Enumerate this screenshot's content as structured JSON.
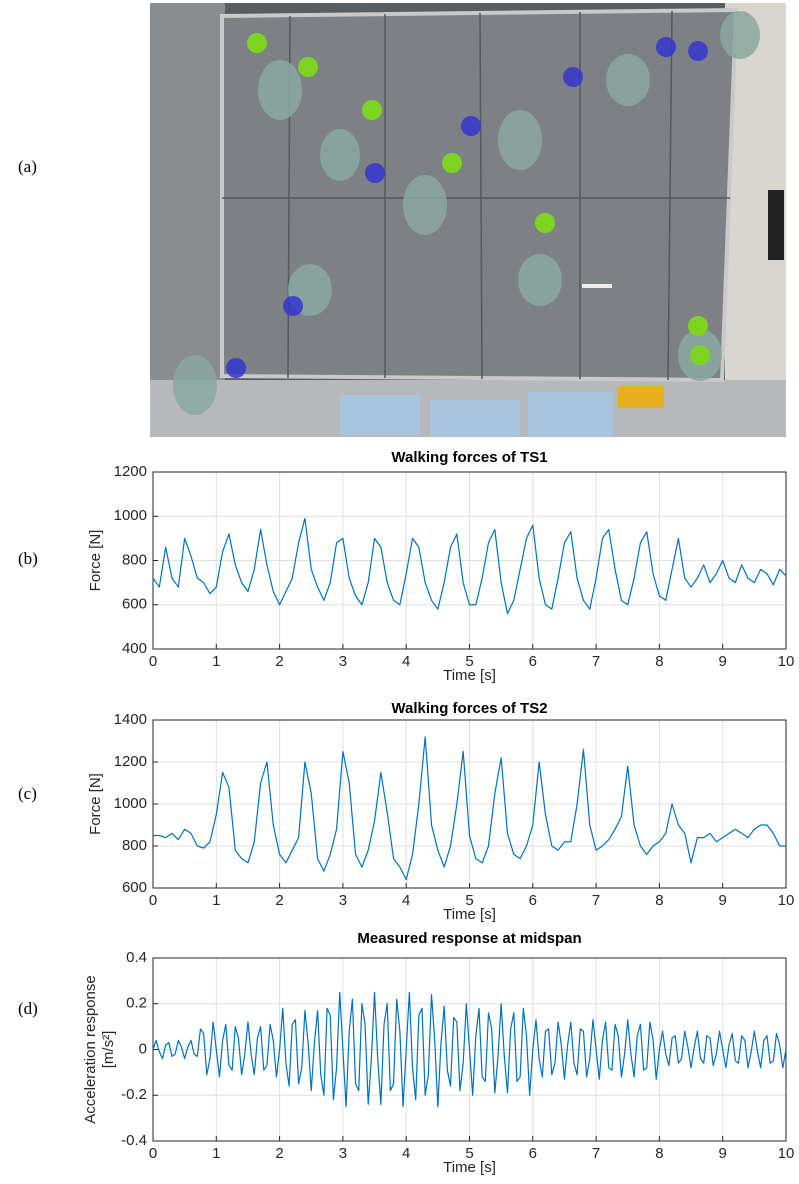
{
  "panel_labels": [
    "(a)",
    "(b)",
    "(c)",
    "(d)"
  ],
  "chart_data": [
    {
      "type": "line",
      "title": "Walking forces of TS1",
      "xlabel": "Time [s]",
      "ylabel": "Force [N]",
      "color": "#0072bd",
      "grid": true,
      "xlim": [
        0,
        10
      ],
      "xticks": [
        0,
        1,
        2,
        3,
        4,
        5,
        6,
        7,
        8,
        9,
        10
      ],
      "ylim": [
        400,
        1200
      ],
      "yticks": [
        400,
        600,
        800,
        1000,
        1200
      ],
      "x": [
        0,
        0.1,
        0.2,
        0.3,
        0.4,
        0.5,
        0.6,
        0.7,
        0.8,
        0.9,
        1,
        1.1,
        1.2,
        1.3,
        1.4,
        1.5,
        1.6,
        1.7,
        1.8,
        1.9,
        2,
        2.1,
        2.2,
        2.3,
        2.4,
        2.5,
        2.6,
        2.7,
        2.8,
        2.9,
        3,
        3.1,
        3.2,
        3.3,
        3.4,
        3.5,
        3.6,
        3.7,
        3.8,
        3.9,
        4,
        4.1,
        4.2,
        4.3,
        4.4,
        4.5,
        4.6,
        4.7,
        4.8,
        4.9,
        5,
        5.1,
        5.2,
        5.3,
        5.4,
        5.5,
        5.6,
        5.7,
        5.8,
        5.9,
        6,
        6.1,
        6.2,
        6.3,
        6.4,
        6.5,
        6.6,
        6.7,
        6.8,
        6.9,
        7,
        7.1,
        7.2,
        7.3,
        7.4,
        7.5,
        7.6,
        7.7,
        7.8,
        7.9,
        8,
        8.1,
        8.2,
        8.3,
        8.4,
        8.5,
        8.6,
        8.7,
        8.8,
        8.9,
        9,
        9.1,
        9.2,
        9.3,
        9.4,
        9.5,
        9.6,
        9.7,
        9.8,
        9.9,
        10
      ],
      "values": [
        720,
        680,
        860,
        720,
        680,
        900,
        820,
        720,
        700,
        650,
        680,
        840,
        920,
        780,
        700,
        660,
        760,
        940,
        780,
        660,
        600,
        660,
        720,
        880,
        990,
        760,
        680,
        620,
        700,
        880,
        900,
        720,
        640,
        600,
        700,
        900,
        860,
        700,
        620,
        600,
        740,
        900,
        860,
        700,
        620,
        580,
        700,
        860,
        920,
        700,
        600,
        600,
        720,
        880,
        940,
        700,
        560,
        620,
        760,
        900,
        960,
        720,
        600,
        580,
        720,
        880,
        930,
        720,
        620,
        580,
        720,
        900,
        940,
        760,
        620,
        600,
        720,
        880,
        930,
        740,
        640,
        620,
        760,
        900,
        720,
        680,
        720,
        780,
        700,
        740,
        800,
        720,
        700,
        780,
        720,
        700,
        760,
        740,
        690,
        760,
        730
      ]
    },
    {
      "type": "line",
      "title": "Walking forces of TS2",
      "xlabel": "Time [s]",
      "ylabel": "Force [N]",
      "color": "#0072bd",
      "grid": true,
      "xlim": [
        0,
        10
      ],
      "xticks": [
        0,
        1,
        2,
        3,
        4,
        5,
        6,
        7,
        8,
        9,
        10
      ],
      "ylim": [
        600,
        1400
      ],
      "yticks": [
        600,
        800,
        1000,
        1200,
        1400
      ],
      "x": [
        0,
        0.1,
        0.2,
        0.3,
        0.4,
        0.5,
        0.6,
        0.7,
        0.8,
        0.9,
        1,
        1.1,
        1.2,
        1.3,
        1.4,
        1.5,
        1.6,
        1.7,
        1.8,
        1.9,
        2,
        2.1,
        2.2,
        2.3,
        2.4,
        2.5,
        2.6,
        2.7,
        2.8,
        2.9,
        3,
        3.1,
        3.2,
        3.3,
        3.4,
        3.5,
        3.6,
        3.7,
        3.8,
        3.9,
        4,
        4.1,
        4.2,
        4.3,
        4.4,
        4.5,
        4.6,
        4.7,
        4.8,
        4.9,
        5,
        5.1,
        5.2,
        5.3,
        5.4,
        5.5,
        5.6,
        5.7,
        5.8,
        5.9,
        6,
        6.1,
        6.2,
        6.3,
        6.4,
        6.5,
        6.6,
        6.7,
        6.8,
        6.9,
        7,
        7.1,
        7.2,
        7.3,
        7.4,
        7.5,
        7.6,
        7.7,
        7.8,
        7.9,
        8,
        8.1,
        8.2,
        8.3,
        8.4,
        8.5,
        8.6,
        8.7,
        8.8,
        8.9,
        9,
        9.1,
        9.2,
        9.3,
        9.4,
        9.5,
        9.6,
        9.7,
        9.8,
        9.9,
        10
      ],
      "values": [
        850,
        850,
        840,
        860,
        830,
        880,
        860,
        800,
        790,
        820,
        950,
        1150,
        1080,
        780,
        740,
        720,
        820,
        1100,
        1200,
        900,
        760,
        720,
        780,
        840,
        1200,
        1050,
        740,
        680,
        760,
        880,
        1250,
        1100,
        760,
        700,
        780,
        920,
        1150,
        960,
        740,
        700,
        640,
        760,
        1000,
        1320,
        900,
        780,
        700,
        800,
        1000,
        1250,
        850,
        740,
        720,
        800,
        1050,
        1220,
        860,
        760,
        740,
        800,
        900,
        1200,
        950,
        800,
        780,
        820,
        820,
        1000,
        1260,
        900,
        780,
        800,
        830,
        880,
        940,
        1180,
        900,
        800,
        760,
        800,
        820,
        860,
        1000,
        900,
        860,
        720,
        840,
        840,
        860,
        820,
        840,
        860,
        880,
        860,
        840,
        880,
        900,
        900,
        860,
        800,
        800
      ]
    },
    {
      "type": "line",
      "title": "Measured response at midspan",
      "xlabel": "Time [s]",
      "ylabel": [
        "Acceleration response",
        "[m/s²]"
      ],
      "color": "#0072bd",
      "grid": true,
      "xlim": [
        0,
        10
      ],
      "xticks": [
        0,
        1,
        2,
        3,
        4,
        5,
        6,
        7,
        8,
        9,
        10
      ],
      "ylim": [
        -0.4,
        0.4
      ],
      "yticks": [
        -0.4,
        -0.2,
        0,
        0.2,
        0.4
      ],
      "x": [
        0,
        0.05,
        0.1,
        0.15,
        0.2,
        0.25,
        0.3,
        0.35,
        0.4,
        0.45,
        0.5,
        0.55,
        0.6,
        0.65,
        0.7,
        0.75,
        0.8,
        0.85,
        0.9,
        0.95,
        1,
        1.05,
        1.1,
        1.15,
        1.2,
        1.25,
        1.3,
        1.35,
        1.4,
        1.45,
        1.5,
        1.55,
        1.6,
        1.65,
        1.7,
        1.75,
        1.8,
        1.85,
        1.9,
        1.95,
        2,
        2.05,
        2.1,
        2.15,
        2.2,
        2.25,
        2.3,
        2.35,
        2.4,
        2.45,
        2.5,
        2.55,
        2.6,
        2.65,
        2.7,
        2.75,
        2.8,
        2.85,
        2.9,
        2.95,
        3,
        3.05,
        3.1,
        3.15,
        3.2,
        3.25,
        3.3,
        3.35,
        3.4,
        3.45,
        3.5,
        3.55,
        3.6,
        3.65,
        3.7,
        3.75,
        3.8,
        3.85,
        3.9,
        3.95,
        4,
        4.05,
        4.1,
        4.15,
        4.2,
        4.25,
        4.3,
        4.35,
        4.4,
        4.45,
        4.5,
        4.55,
        4.6,
        4.65,
        4.7,
        4.75,
        4.8,
        4.85,
        4.9,
        4.95,
        5,
        5.05,
        5.1,
        5.15,
        5.2,
        5.25,
        5.3,
        5.35,
        5.4,
        5.45,
        5.5,
        5.55,
        5.6,
        5.65,
        5.7,
        5.75,
        5.8,
        5.85,
        5.9,
        5.95,
        6,
        6.05,
        6.1,
        6.15,
        6.2,
        6.25,
        6.3,
        6.35,
        6.4,
        6.45,
        6.5,
        6.55,
        6.6,
        6.65,
        6.7,
        6.75,
        6.8,
        6.85,
        6.9,
        6.95,
        7,
        7.05,
        7.1,
        7.15,
        7.2,
        7.25,
        7.3,
        7.35,
        7.4,
        7.45,
        7.5,
        7.55,
        7.6,
        7.65,
        7.7,
        7.75,
        7.8,
        7.85,
        7.9,
        7.95,
        8,
        8.05,
        8.1,
        8.15,
        8.2,
        8.25,
        8.3,
        8.35,
        8.4,
        8.45,
        8.5,
        8.55,
        8.6,
        8.65,
        8.7,
        8.75,
        8.8,
        8.85,
        8.9,
        8.95,
        9,
        9.05,
        9.1,
        9.15,
        9.2,
        9.25,
        9.3,
        9.35,
        9.4,
        9.45,
        9.5,
        9.55,
        9.6,
        9.65,
        9.7,
        9.75,
        9.8,
        9.85,
        9.9,
        9.95,
        10
      ],
      "values": [
        0,
        0.04,
        -0.01,
        -0.04,
        0.02,
        0.03,
        -0.03,
        -0.02,
        0.04,
        0.01,
        -0.04,
        0.01,
        0.04,
        -0.02,
        -0.03,
        0.09,
        0.07,
        -0.11,
        -0.04,
        0.12,
        0,
        -0.12,
        0.04,
        0.11,
        -0.07,
        -0.09,
        0.1,
        0.05,
        -0.11,
        -0.02,
        0.12,
        -0.02,
        -0.11,
        0.05,
        0.1,
        -0.09,
        -0.07,
        0.11,
        0.04,
        -0.12,
        0,
        0.18,
        -0.06,
        -0.16,
        0.11,
        0.13,
        -0.15,
        -0.08,
        0.17,
        0.03,
        -0.18,
        0.03,
        0.17,
        -0.11,
        -0.2,
        0.18,
        0.15,
        -0.22,
        -0.08,
        0.25,
        0,
        -0.25,
        0.08,
        0.22,
        -0.15,
        -0.18,
        0.2,
        0.11,
        -0.24,
        -0.04,
        0.25,
        -0.04,
        -0.24,
        0.11,
        0.2,
        -0.18,
        -0.15,
        0.22,
        0.08,
        -0.25,
        0,
        0.25,
        -0.08,
        -0.22,
        0.15,
        0.18,
        -0.2,
        -0.11,
        0.24,
        0.04,
        -0.25,
        0.03,
        0.19,
        -0.09,
        -0.16,
        0.14,
        0.12,
        -0.18,
        -0.06,
        0.2,
        0,
        -0.2,
        0.06,
        0.18,
        -0.12,
        -0.14,
        0.16,
        0.09,
        -0.19,
        -0.03,
        0.2,
        -0.03,
        -0.19,
        0.09,
        0.16,
        -0.14,
        -0.12,
        0.18,
        0.06,
        -0.2,
        0,
        0.13,
        -0.04,
        -0.12,
        0.08,
        0.09,
        -0.11,
        -0.06,
        0.12,
        0.02,
        -0.13,
        0.02,
        0.12,
        -0.06,
        -0.11,
        0.09,
        0.08,
        -0.12,
        -0.04,
        0.13,
        0,
        -0.13,
        0.04,
        0.12,
        -0.08,
        -0.09,
        0.11,
        0.06,
        -0.12,
        -0.02,
        0.13,
        -0.02,
        -0.12,
        0.06,
        0.11,
        -0.09,
        -0.08,
        0.12,
        0.04,
        -0.13,
        0,
        0.08,
        -0.02,
        -0.07,
        0.05,
        0.06,
        -0.06,
        -0.04,
        0.08,
        0.01,
        -0.08,
        0.01,
        0.08,
        -0.04,
        -0.06,
        0.06,
        0.05,
        -0.07,
        -0.02,
        0.08,
        0,
        -0.08,
        0.02,
        0.07,
        -0.05,
        -0.06,
        0.06,
        0.04,
        -0.08,
        -0.01,
        0.08,
        -0.01,
        -0.08,
        0.04,
        0.06,
        -0.06,
        -0.05,
        0.07,
        0.02,
        -0.08,
        0
      ]
    }
  ]
}
